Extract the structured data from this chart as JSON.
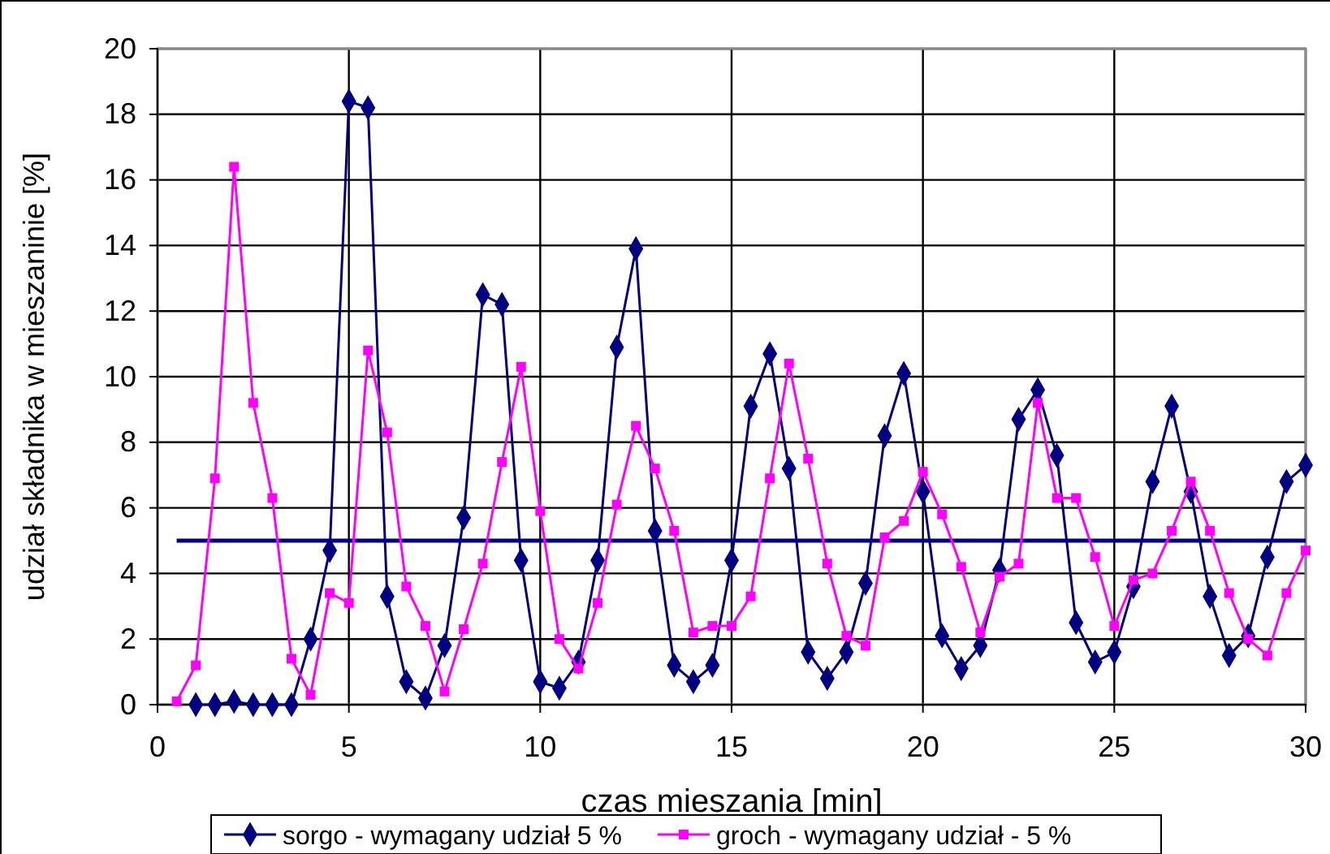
{
  "chart_data": {
    "type": "line",
    "xlabel": "czas mieszania [min]",
    "ylabel": "udział  składnika w mieszaninie  [%]",
    "xlim": [
      0,
      30
    ],
    "xticks": [
      0,
      5,
      10,
      15,
      20,
      25,
      30
    ],
    "ylim": [
      0,
      20
    ],
    "yticks": [
      0,
      2,
      4,
      6,
      8,
      10,
      12,
      14,
      16,
      18,
      20
    ],
    "grid": true,
    "legend": "bottom",
    "ref_lines": [
      {
        "axis": "y",
        "value": 5,
        "color": "#000080"
      }
    ],
    "series": [
      {
        "name": "sorgo - wymagany udział 5 %",
        "color": "#000080",
        "marker": "diamond",
        "x": [
          1,
          1.5,
          2,
          2.5,
          3,
          3.5,
          4,
          4.5,
          5,
          5.5,
          6,
          6.5,
          7,
          7.5,
          8,
          8.5,
          9,
          9.5,
          10,
          10.5,
          11,
          11.5,
          12,
          12.5,
          13,
          13.5,
          14,
          14.5,
          15,
          15.5,
          16,
          16.5,
          17,
          17.5,
          18,
          18.5,
          19,
          19.5,
          20,
          20.5,
          21,
          21.5,
          22,
          22.5,
          23,
          23.5,
          24,
          24.5,
          25,
          25.5,
          26,
          26.5,
          27,
          27.5,
          28,
          28.5,
          29,
          29.5,
          30
        ],
        "values": [
          0,
          0,
          0.1,
          0,
          0,
          0,
          2.0,
          4.7,
          18.4,
          18.2,
          3.3,
          0.7,
          0.2,
          1.8,
          5.7,
          12.5,
          12.2,
          4.4,
          0.7,
          0.5,
          1.3,
          4.4,
          10.9,
          13.9,
          5.3,
          1.2,
          0.7,
          1.2,
          4.4,
          9.1,
          10.7,
          7.2,
          1.6,
          0.8,
          1.6,
          3.7,
          8.2,
          10.1,
          6.5,
          2.1,
          1.1,
          1.8,
          4.1,
          8.7,
          9.6,
          7.6,
          2.5,
          1.3,
          1.6,
          3.6,
          6.8,
          9.1,
          6.5,
          3.3,
          1.5,
          2.1,
          4.5,
          6.8,
          7.3
        ]
      },
      {
        "name": "groch - wymagany udział - 5 %",
        "color": "#ff00ff",
        "marker": "square",
        "x": [
          0.5,
          1,
          1.5,
          2,
          2.5,
          3,
          3.5,
          4,
          4.5,
          5,
          5.5,
          6,
          6.5,
          7,
          7.5,
          8,
          8.5,
          9,
          9.5,
          10,
          10.5,
          11,
          11.5,
          12,
          12.5,
          13,
          13.5,
          14,
          14.5,
          15,
          15.5,
          16,
          16.5,
          17,
          17.5,
          18,
          18.5,
          19,
          19.5,
          20,
          20.5,
          21,
          21.5,
          22,
          22.5,
          23,
          23.5,
          24,
          24.5,
          25,
          25.5,
          26,
          26.5,
          27,
          27.5,
          28,
          28.5,
          29,
          29.5,
          30
        ],
        "values": [
          0.1,
          1.2,
          6.9,
          16.4,
          9.2,
          6.3,
          1.4,
          0.3,
          3.4,
          3.1,
          10.8,
          8.3,
          3.6,
          2.4,
          0.4,
          2.3,
          4.3,
          7.4,
          10.3,
          5.9,
          2.0,
          1.1,
          3.1,
          6.1,
          8.5,
          7.2,
          5.3,
          2.2,
          2.4,
          2.4,
          3.3,
          6.9,
          10.4,
          7.5,
          4.3,
          2.1,
          1.8,
          5.1,
          5.6,
          7.1,
          5.8,
          4.2,
          2.2,
          3.9,
          4.3,
          9.2,
          6.3,
          6.3,
          4.5,
          2.4,
          3.8,
          4.0,
          5.3,
          6.8,
          5.3,
          3.4,
          2.0,
          1.5,
          3.4,
          4.7
        ]
      }
    ]
  }
}
